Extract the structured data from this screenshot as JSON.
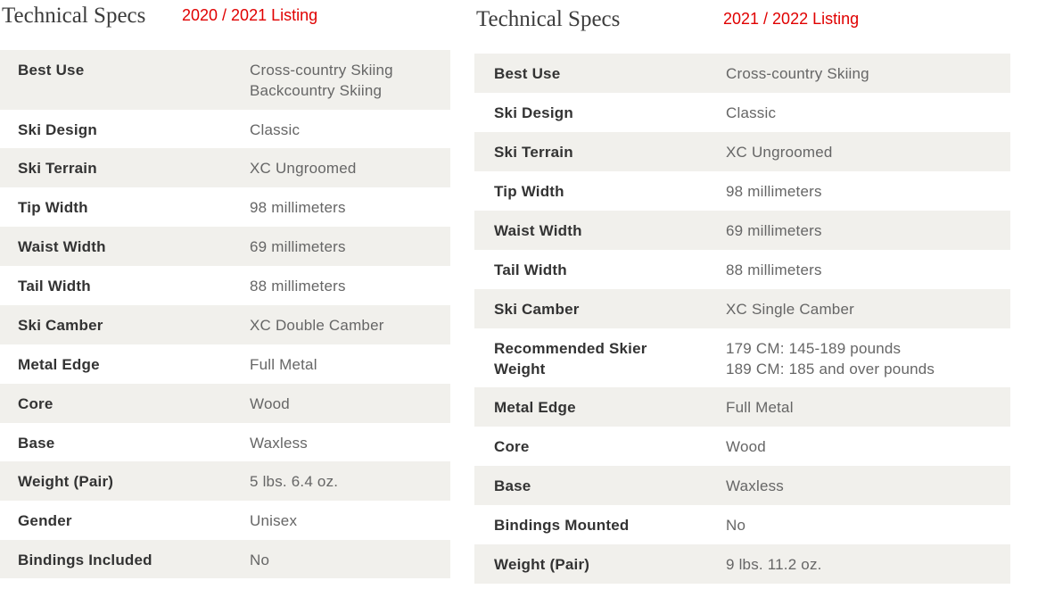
{
  "left": {
    "title": "Technical Specs",
    "listing": "2020 / 2021 Listing",
    "rows": [
      {
        "label": "Best Use",
        "value": "Cross-country Skiing\nBackcountry Skiing"
      },
      {
        "label": "Ski Design",
        "value": "Classic"
      },
      {
        "label": "Ski Terrain",
        "value": "XC Ungroomed"
      },
      {
        "label": "Tip Width",
        "value": "98 millimeters"
      },
      {
        "label": "Waist Width",
        "value": "69 millimeters"
      },
      {
        "label": "Tail Width",
        "value": "88 millimeters"
      },
      {
        "label": "Ski Camber",
        "value": "XC Double Camber"
      },
      {
        "label": "Metal Edge",
        "value": "Full Metal"
      },
      {
        "label": "Core",
        "value": "Wood"
      },
      {
        "label": "Base",
        "value": "Waxless"
      },
      {
        "label": "Weight (Pair)",
        "value": "5 lbs. 6.4 oz."
      },
      {
        "label": "Gender",
        "value": "Unisex"
      },
      {
        "label": "Bindings Included",
        "value": "No"
      }
    ]
  },
  "right": {
    "title": "Technical Specs",
    "listing": "2021 / 2022 Listing",
    "rows": [
      {
        "label": "Best Use",
        "value": "Cross-country Skiing"
      },
      {
        "label": "Ski Design",
        "value": "Classic"
      },
      {
        "label": "Ski Terrain",
        "value": "XC Ungroomed"
      },
      {
        "label": "Tip Width",
        "value": "98 millimeters"
      },
      {
        "label": "Waist Width",
        "value": "69 millimeters"
      },
      {
        "label": "Tail Width",
        "value": "88 millimeters"
      },
      {
        "label": "Ski Camber",
        "value": "XC Single Camber"
      },
      {
        "label": "Recommended Skier\nWeight",
        "value": "179 CM: 145-189 pounds\n189 CM: 185 and over pounds"
      },
      {
        "label": "Metal Edge",
        "value": "Full Metal"
      },
      {
        "label": "Core",
        "value": "Wood"
      },
      {
        "label": "Base",
        "value": "Waxless"
      },
      {
        "label": "Bindings Mounted",
        "value": "No"
      },
      {
        "label": "Weight (Pair)",
        "value": "9 lbs. 11.2 oz."
      }
    ]
  },
  "colors": {
    "listing_red": "#e00000",
    "row_shade": "#f1f0ec",
    "label_text": "#333333",
    "value_text": "#666666"
  }
}
